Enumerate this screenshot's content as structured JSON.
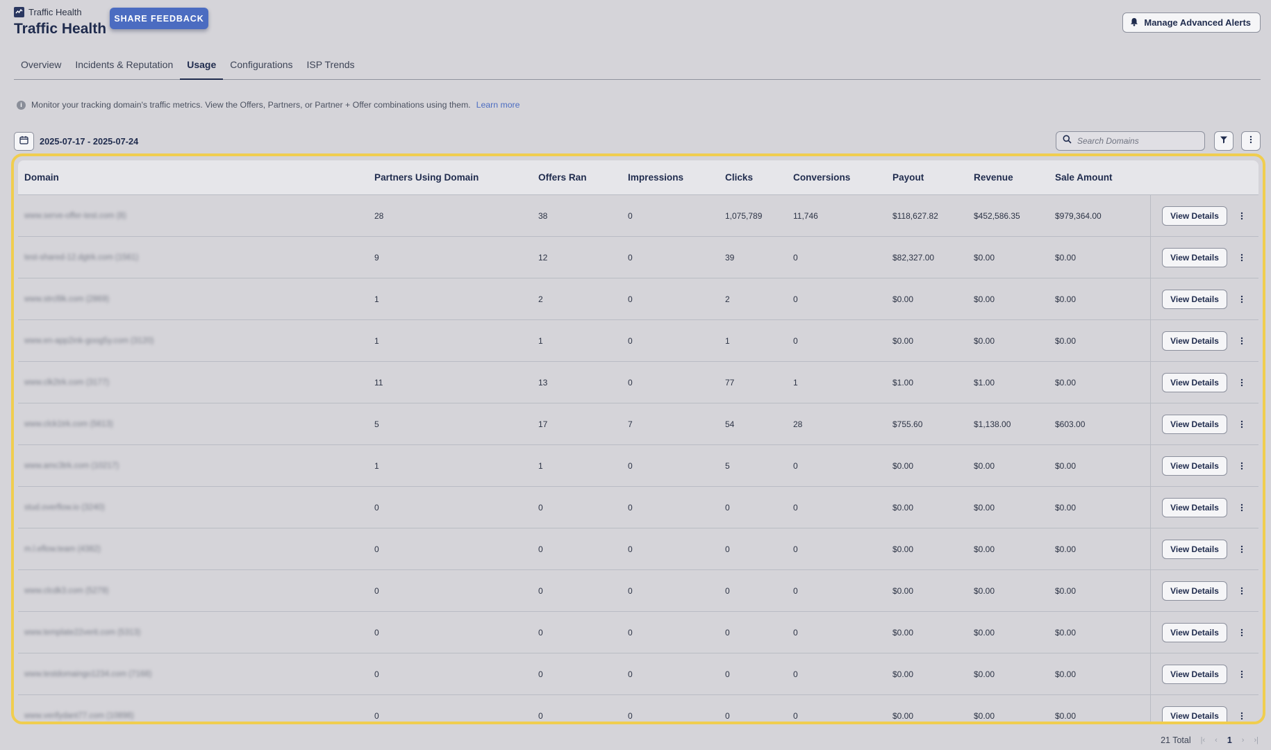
{
  "header": {
    "breadcrumb": "Traffic Health",
    "title": "Traffic Health",
    "feedback_label": "SHARE FEEDBACK",
    "alerts_label": "Manage Advanced Alerts"
  },
  "tabs": [
    {
      "label": "Overview"
    },
    {
      "label": "Incidents & Reputation"
    },
    {
      "label": "Usage",
      "active": true
    },
    {
      "label": "Configurations"
    },
    {
      "label": "ISP Trends"
    }
  ],
  "info": {
    "text": "Monitor your tracking domain's traffic metrics. View the Offers, Partners, or Partner + Offer combinations using them.",
    "link": "Learn more"
  },
  "toolbar": {
    "date_range": "2025-07-17 - 2025-07-24",
    "search_placeholder": "Search Domains"
  },
  "table": {
    "columns": [
      "Domain",
      "Partners Using Domain",
      "Offers Ran",
      "Impressions",
      "Clicks",
      "Conversions",
      "Payout",
      "Revenue",
      "Sale Amount"
    ],
    "view_label": "View Details",
    "rows": [
      {
        "domain": "www.serve-offer-test.com (8)",
        "partners": "28",
        "offers": "38",
        "impressions": "0",
        "clicks": "1,075,789",
        "conversions": "11,746",
        "payout": "$118,627.82",
        "revenue": "$452,586.35",
        "sale": "$979,364.00"
      },
      {
        "domain": "test-shared-12.dgtrk.com (1561)",
        "partners": "9",
        "offers": "12",
        "impressions": "0",
        "clicks": "39",
        "conversions": "0",
        "payout": "$82,327.00",
        "revenue": "$0.00",
        "sale": "$0.00"
      },
      {
        "domain": "www.strcl9k.com (2869)",
        "partners": "1",
        "offers": "2",
        "impressions": "0",
        "clicks": "2",
        "conversions": "0",
        "payout": "$0.00",
        "revenue": "$0.00",
        "sale": "$0.00"
      },
      {
        "domain": "www.en-app2ink-goog5y.com (3120)",
        "partners": "1",
        "offers": "1",
        "impressions": "0",
        "clicks": "1",
        "conversions": "0",
        "payout": "$0.00",
        "revenue": "$0.00",
        "sale": "$0.00"
      },
      {
        "domain": "www.clk2trk.com (3177)",
        "partners": "11",
        "offers": "13",
        "impressions": "0",
        "clicks": "77",
        "conversions": "1",
        "payout": "$1.00",
        "revenue": "$1.00",
        "sale": "$0.00"
      },
      {
        "domain": "www.clck1trk.com (5613)",
        "partners": "5",
        "offers": "17",
        "impressions": "7",
        "clicks": "54",
        "conversions": "28",
        "payout": "$755.60",
        "revenue": "$1,138.00",
        "sale": "$603.00"
      },
      {
        "domain": "www.amc3trk.com (10217)",
        "partners": "1",
        "offers": "1",
        "impressions": "0",
        "clicks": "5",
        "conversions": "0",
        "payout": "$0.00",
        "revenue": "$0.00",
        "sale": "$0.00"
      },
      {
        "domain": "stud.overflow.io (3240)",
        "partners": "0",
        "offers": "0",
        "impressions": "0",
        "clicks": "0",
        "conversions": "0",
        "payout": "$0.00",
        "revenue": "$0.00",
        "sale": "$0.00"
      },
      {
        "domain": "m.l.eflow.team (4382)",
        "partners": "0",
        "offers": "0",
        "impressions": "0",
        "clicks": "0",
        "conversions": "0",
        "payout": "$0.00",
        "revenue": "$0.00",
        "sale": "$0.00"
      },
      {
        "domain": "www.clcdk3.com (5279)",
        "partners": "0",
        "offers": "0",
        "impressions": "0",
        "clicks": "0",
        "conversions": "0",
        "payout": "$0.00",
        "revenue": "$0.00",
        "sale": "$0.00"
      },
      {
        "domain": "www.template22verit.com (5313)",
        "partners": "0",
        "offers": "0",
        "impressions": "0",
        "clicks": "0",
        "conversions": "0",
        "payout": "$0.00",
        "revenue": "$0.00",
        "sale": "$0.00"
      },
      {
        "domain": "www.testdomaingo1234.com (7168)",
        "partners": "0",
        "offers": "0",
        "impressions": "0",
        "clicks": "0",
        "conversions": "0",
        "payout": "$0.00",
        "revenue": "$0.00",
        "sale": "$0.00"
      },
      {
        "domain": "www.verifydant77.com (10898)",
        "partners": "0",
        "offers": "0",
        "impressions": "0",
        "clicks": "0",
        "conversions": "0",
        "payout": "$0.00",
        "revenue": "$0.00",
        "sale": "$0.00"
      }
    ]
  },
  "pagination": {
    "total": "21 Total",
    "current": "1"
  },
  "colors": {
    "accent": "#4b6cc1",
    "highlight": "#f0cd4f",
    "title": "#1f2b4d"
  }
}
